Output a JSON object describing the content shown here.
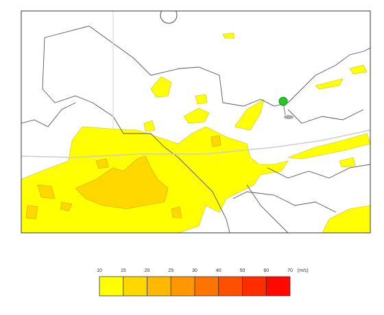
{
  "legend": {
    "ticks": [
      10,
      15,
      20,
      25,
      30,
      40,
      50,
      60,
      70
    ],
    "unit": "(m/s)",
    "colors": [
      "#ffff00",
      "#ffd800",
      "#ffb800",
      "#ff9800",
      "#ff7400",
      "#ff5000",
      "#ff2c00",
      "#ff0800"
    ]
  }
}
